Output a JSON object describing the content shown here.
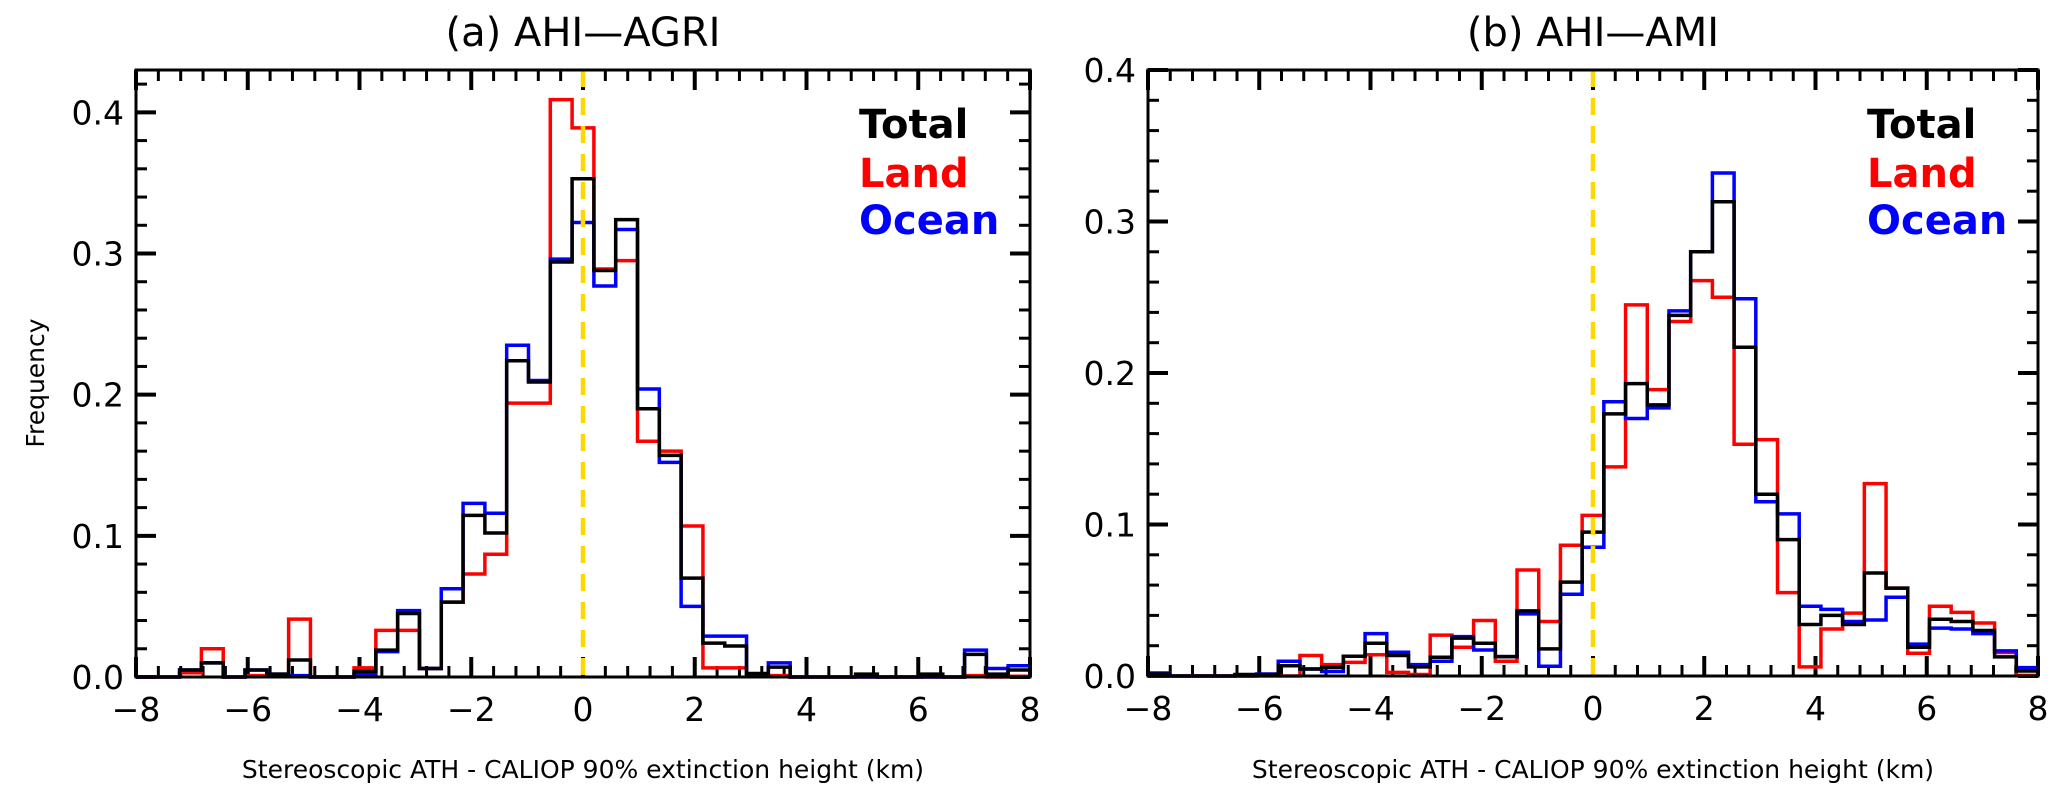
{
  "chart_data": [
    {
      "type": "histogram-step",
      "title": "(a) AHI—AGRI",
      "xlabel": "Stereoscopic ATH - CALIOP 90% extinction height (km)",
      "ylabel": "Frequency",
      "xlim": [
        -8,
        8
      ],
      "ylim": [
        0,
        0.43
      ],
      "bins": 41,
      "xticks": [
        -8,
        -6,
        -4,
        -2,
        0,
        2,
        4,
        6,
        8
      ],
      "xtick_labels": [
        "−8",
        "−6",
        "−4",
        "−2",
        "0",
        "2",
        "4",
        "6",
        "8"
      ],
      "yticks": [
        0,
        0.1,
        0.2,
        0.3,
        0.4
      ],
      "ytick_labels": [
        "0.0",
        "0.1",
        "0.2",
        "0.3",
        "0.4"
      ],
      "reference_line_x": 0,
      "reference_line_color": "#FFD700",
      "legend_position": "top-right",
      "series": [
        {
          "name": "Land",
          "color": "#FF0000",
          "values": [
            0,
            0,
            0.003,
            0.02,
            0,
            0.001,
            0.001,
            0.041,
            0,
            0,
            0.0065,
            0.033,
            0.033,
            0.006,
            0.053,
            0.073,
            0.087,
            0.194,
            0.194,
            0.409,
            0.389,
            0.289,
            0.295,
            0.167,
            0.16,
            0.107,
            0.0065,
            0.0065,
            0.001,
            0.001,
            0,
            0,
            0,
            0,
            0,
            0,
            0,
            0,
            0.001,
            0,
            0.0005
          ]
        },
        {
          "name": "Ocean",
          "color": "#0000FF",
          "values": [
            0,
            0,
            0.005,
            0.01,
            0,
            0.005,
            0.002,
            0.001,
            0,
            0,
            0.002,
            0.018,
            0.047,
            0.006,
            0.0625,
            0.123,
            0.116,
            0.235,
            0.21,
            0.296,
            0.322,
            0.277,
            0.317,
            0.204,
            0.152,
            0.05,
            0.029,
            0.029,
            0.002,
            0.01,
            0,
            0,
            0,
            0,
            0,
            0,
            0,
            0,
            0.019,
            0.006,
            0.008
          ]
        },
        {
          "name": "Total",
          "color": "#000000",
          "values": [
            0,
            0,
            0.005,
            0.01,
            0,
            0.005,
            0.002,
            0.012,
            0,
            0,
            0.004,
            0.019,
            0.045,
            0.006,
            0.053,
            0.1145,
            0.102,
            0.224,
            0.209,
            0.294,
            0.353,
            0.288,
            0.324,
            0.19,
            0.157,
            0.07,
            0.024,
            0.022,
            0.0025,
            0.007,
            0,
            0,
            0,
            0.002,
            0,
            0,
            0.002,
            0,
            0.016,
            0.002,
            0.005
          ]
        }
      ]
    },
    {
      "type": "histogram-step",
      "title": "(b) AHI—AMI",
      "xlabel": "Stereoscopic ATH - CALIOP 90% extinction height (km)",
      "ylabel": "",
      "xlim": [
        -8,
        8
      ],
      "ylim": [
        0,
        0.4
      ],
      "bins": 41,
      "xticks": [
        -8,
        -6,
        -4,
        -2,
        0,
        2,
        4,
        6,
        8
      ],
      "xtick_labels": [
        "−8",
        "−6",
        "−4",
        "−2",
        "0",
        "2",
        "4",
        "6",
        "8"
      ],
      "yticks": [
        0,
        0.1,
        0.2,
        0.3,
        0.4
      ],
      "ytick_labels": [
        "0.0",
        "0.1",
        "0.2",
        "0.3",
        "0.4"
      ],
      "reference_line_x": 0,
      "reference_line_color": "#FFD700",
      "legend_position": "top-right",
      "series": [
        {
          "name": "Land",
          "color": "#FF0000",
          "values": [
            0,
            0,
            0,
            0,
            0,
            0,
            0,
            0.0135,
            0.0075,
            0.009,
            0.014,
            0.0024,
            0.001,
            0.027,
            0.019,
            0.0366,
            0.0097,
            0.07,
            0.036,
            0.0863,
            0.106,
            0.138,
            0.245,
            0.189,
            0.234,
            0.261,
            0.25,
            0.153,
            0.156,
            0.055,
            0.006,
            0.031,
            0.0415,
            0.127,
            0.058,
            0.015,
            0.046,
            0.042,
            0.035,
            0.0155,
            0.0004
          ]
        },
        {
          "name": "Ocean",
          "color": "#0000FF",
          "values": [
            0.002,
            0,
            0,
            0,
            0,
            0.0013,
            0.0097,
            0.0046,
            0.003,
            0.013,
            0.028,
            0.0157,
            0.0075,
            0.0097,
            0.026,
            0.0172,
            0.0128,
            0.041,
            0.0064,
            0.054,
            0.085,
            0.181,
            0.17,
            0.177,
            0.241,
            0.28,
            0.332,
            0.249,
            0.115,
            0.107,
            0.046,
            0.044,
            0.036,
            0.037,
            0.052,
            0.021,
            0.0316,
            0.031,
            0.028,
            0.0166,
            0.0055
          ]
        },
        {
          "name": "Total",
          "color": "#000000",
          "values": [
            0.0013,
            0,
            0,
            0,
            0.001,
            0.001,
            0.0068,
            0.0046,
            0.0057,
            0.013,
            0.0216,
            0.0135,
            0.006,
            0.0124,
            0.025,
            0.0216,
            0.0128,
            0.043,
            0.0179,
            0.062,
            0.095,
            0.173,
            0.193,
            0.179,
            0.238,
            0.28,
            0.313,
            0.217,
            0.12,
            0.09,
            0.034,
            0.04,
            0.034,
            0.068,
            0.058,
            0.019,
            0.0375,
            0.036,
            0.03,
            0.0126,
            0.0033
          ]
        }
      ]
    }
  ]
}
